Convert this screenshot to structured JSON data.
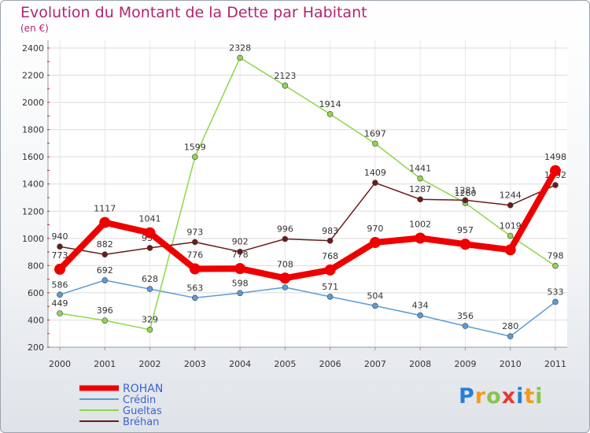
{
  "chart_data": {
    "type": "line",
    "title": "Evolution du Montant de la Dette par Habitant",
    "subtitle": "(en €)",
    "x": [
      "2000",
      "2001",
      "2002",
      "2003",
      "2004",
      "2005",
      "2006",
      "2007",
      "2008",
      "2009",
      "2010",
      "2011"
    ],
    "ylim": [
      200,
      2400
    ],
    "yticks": [
      200,
      400,
      600,
      800,
      1000,
      1200,
      1400,
      1600,
      1800,
      2000,
      2200,
      2400
    ],
    "grid": true,
    "legend_position": "bottom-left",
    "series": [
      {
        "name": "ROHAN",
        "color": "#ee0000",
        "values": [
          773,
          1117,
          1041,
          776,
          778,
          708,
          768,
          970,
          1002,
          957,
          916,
          1498
        ],
        "labels": [
          "773",
          "1117",
          "1041",
          "776",
          "778",
          "708",
          "768",
          "970",
          "1002",
          "957",
          "",
          "1498"
        ]
      },
      {
        "name": "Crédin",
        "color": "#5b9bd5",
        "values": [
          586,
          692,
          628,
          563,
          598,
          640,
          571,
          504,
          434,
          356,
          280,
          533
        ],
        "labels": [
          "586",
          "692",
          "628",
          "563",
          "598",
          "640",
          "571",
          "504",
          "434",
          "356",
          "280",
          "533"
        ]
      },
      {
        "name": "Gueltas",
        "color": "#8fd64a",
        "values": [
          449,
          396,
          329,
          1599,
          2328,
          2123,
          1914,
          1697,
          1441,
          1260,
          1019,
          798
        ],
        "labels": [
          "449",
          "396",
          "329",
          "1599",
          "2328",
          "2123",
          "1914",
          "1697",
          "1441",
          "1260",
          "1019",
          "798"
        ]
      },
      {
        "name": "Bréhan",
        "color": "#6b1a1a",
        "values": [
          940,
          882,
          930,
          973,
          902,
          996,
          983,
          1409,
          1287,
          1281,
          1244,
          1392
        ],
        "labels": [
          "940",
          "882",
          "930",
          "973",
          "902",
          "996",
          "983",
          "1409",
          "1287",
          "1281",
          "1244",
          "1392"
        ]
      }
    ]
  },
  "logo": {
    "letters": [
      "P",
      "r",
      "o",
      "x",
      "i",
      "t",
      "i"
    ],
    "colors": [
      "#2a7fd4",
      "#f39a1b",
      "#8bc34a",
      "#e53935",
      "#2a7fd4",
      "#f39a1b",
      "#8bc34a"
    ]
  }
}
